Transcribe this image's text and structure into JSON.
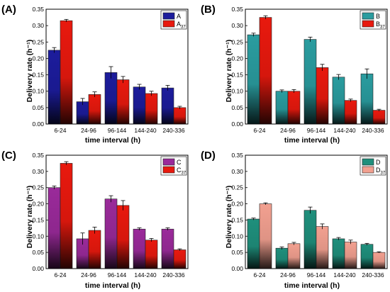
{
  "chart_data": [
    {
      "type": "bar",
      "panel_label": "(A)",
      "categories": [
        "6-24",
        "24-96",
        "96-144",
        "144-240",
        "240-336"
      ],
      "xlabel": "time interval (h)",
      "ylabel": "Delivery rate (h⁻¹)",
      "ylim": [
        0,
        0.35
      ],
      "yticks": [
        "0.00",
        "0.05",
        "0.10",
        "0.15",
        "0.20",
        "0.25",
        "0.30",
        "0.35"
      ],
      "legend_position": "top-right",
      "series": [
        {
          "name": "A",
          "name_sub": "",
          "color": "#1c1c9c",
          "values": [
            0.225,
            0.068,
            0.157,
            0.113,
            0.11
          ],
          "errors": [
            0.008,
            0.01,
            0.018,
            0.008,
            0.008
          ]
        },
        {
          "name": "A",
          "name_sub": "37",
          "color": "#e8190e",
          "values": [
            0.315,
            0.09,
            0.135,
            0.093,
            0.05
          ],
          "errors": [
            0.004,
            0.008,
            0.01,
            0.007,
            0.004
          ]
        }
      ]
    },
    {
      "type": "bar",
      "panel_label": "(B)",
      "categories": [
        "6-24",
        "24-96",
        "96-144",
        "144-240",
        "240-336"
      ],
      "xlabel": "time interval (h)",
      "ylabel": "Delivery rate (h⁻¹)",
      "ylim": [
        0,
        0.35
      ],
      "yticks": [
        "0.00",
        "0.05",
        "0.10",
        "0.15",
        "0.20",
        "0.25",
        "0.30",
        "0.35"
      ],
      "legend_position": "top-right",
      "series": [
        {
          "name": "B",
          "name_sub": "",
          "color": "#2a9c9f",
          "values": [
            0.272,
            0.1,
            0.258,
            0.143,
            0.153
          ],
          "errors": [
            0.005,
            0.004,
            0.007,
            0.008,
            0.015
          ]
        },
        {
          "name": "B",
          "name_sub": "37",
          "color": "#e8190e",
          "values": [
            0.325,
            0.1,
            0.172,
            0.072,
            0.042
          ],
          "errors": [
            0.005,
            0.005,
            0.01,
            0.004,
            0.003
          ]
        }
      ]
    },
    {
      "type": "bar",
      "panel_label": "(C)",
      "categories": [
        "6-24",
        "24-96",
        "96-144",
        "144-240",
        "240-336"
      ],
      "xlabel": "time interval (h)",
      "ylabel": "Delivery rate (h⁻¹)",
      "ylim": [
        0,
        0.35
      ],
      "yticks": [
        "0.00",
        "0.05",
        "0.10",
        "0.15",
        "0.20",
        "0.25",
        "0.30",
        "0.35"
      ],
      "legend_position": "top-right",
      "series": [
        {
          "name": "C",
          "name_sub": "",
          "color": "#9a2a9a",
          "values": [
            0.25,
            0.092,
            0.215,
            0.122,
            0.122
          ],
          "errors": [
            0.005,
            0.018,
            0.01,
            0.004,
            0.004
          ]
        },
        {
          "name": "C",
          "name_sub": "37",
          "color": "#e8190e",
          "values": [
            0.325,
            0.118,
            0.195,
            0.088,
            0.058
          ],
          "errors": [
            0.005,
            0.01,
            0.015,
            0.005,
            0.003
          ]
        }
      ]
    },
    {
      "type": "bar",
      "panel_label": "(D)",
      "categories": [
        "6-24",
        "24-96",
        "96-144",
        "144-240",
        "240-336"
      ],
      "xlabel": "time interval (h)",
      "ylabel": "Delivery rate (h⁻¹)",
      "ylim": [
        0,
        0.35
      ],
      "yticks": [
        "0.00",
        "0.05",
        "0.10",
        "0.15",
        "0.20",
        "0.25",
        "0.30",
        "0.35"
      ],
      "legend_position": "top-right",
      "series": [
        {
          "name": "D",
          "name_sub": "",
          "color": "#1f8f7c",
          "values": [
            0.153,
            0.063,
            0.18,
            0.092,
            0.075
          ],
          "errors": [
            0.003,
            0.004,
            0.01,
            0.004,
            0.003
          ]
        },
        {
          "name": "D",
          "name_sub": "37",
          "color": "#f2a090",
          "values": [
            0.2,
            0.077,
            0.13,
            0.082,
            0.05
          ],
          "errors": [
            0.003,
            0.004,
            0.008,
            0.006,
            0.002
          ]
        }
      ]
    }
  ]
}
